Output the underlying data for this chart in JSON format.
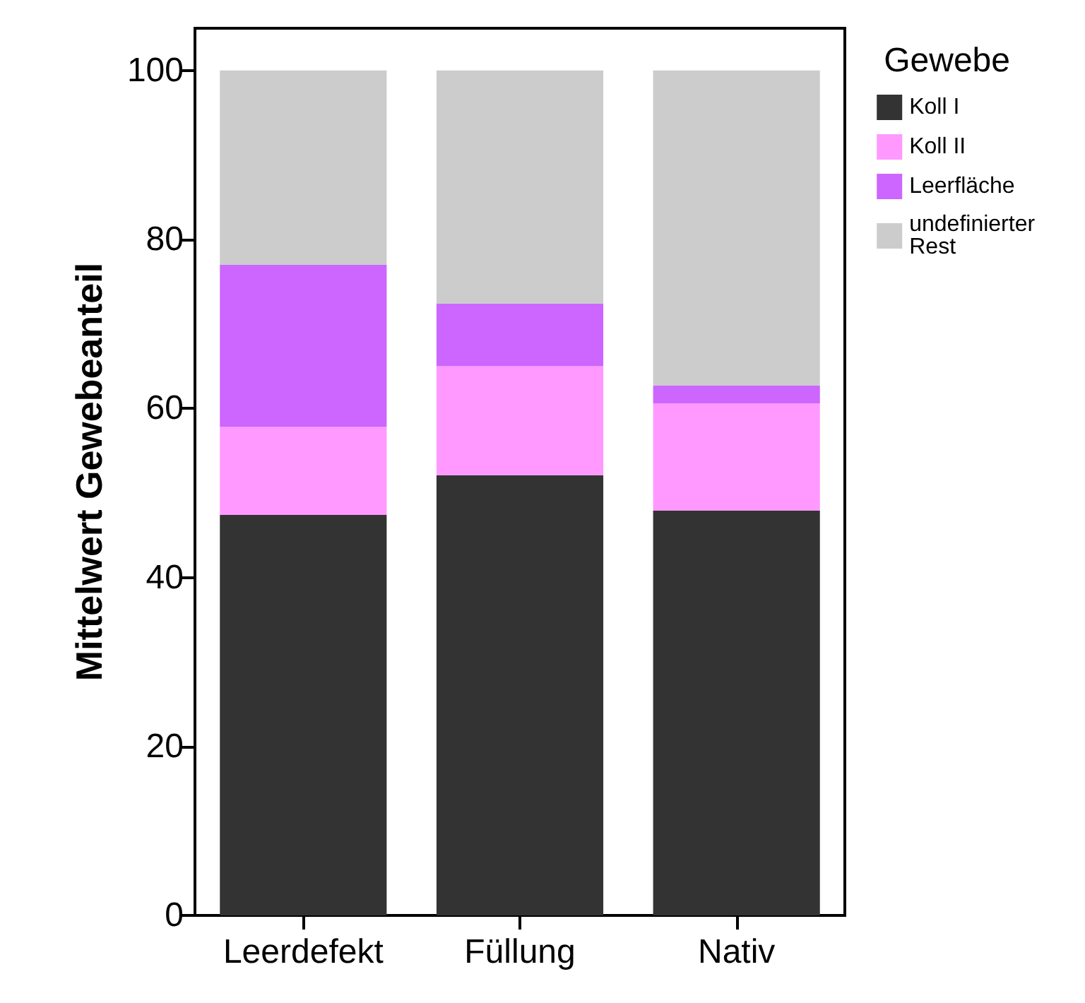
{
  "chart_data": {
    "type": "bar",
    "stacked": true,
    "ylabel": "Mittelwert Gewebeanteil",
    "legend_title": "Gewebe",
    "legend": "top right",
    "grid": false,
    "categories": [
      "Leerdefekt",
      "Füllung",
      "Nativ"
    ],
    "ylim": [
      0,
      105
    ],
    "yticks": [
      0,
      20,
      40,
      60,
      80,
      100
    ],
    "series": [
      {
        "name": "Koll I",
        "color": "#333333",
        "values": [
          47.4,
          52.1,
          47.9
        ]
      },
      {
        "name": "Koll II",
        "color": "#ff99ff",
        "values": [
          10.4,
          12.9,
          12.7
        ]
      },
      {
        "name": "Leerfläche",
        "color": "#cc66ff",
        "values": [
          19.2,
          7.4,
          2.1
        ]
      },
      {
        "name": "undefinierter Rest",
        "color": "#cccccc",
        "values": [
          23.0,
          27.6,
          37.3
        ]
      }
    ]
  }
}
